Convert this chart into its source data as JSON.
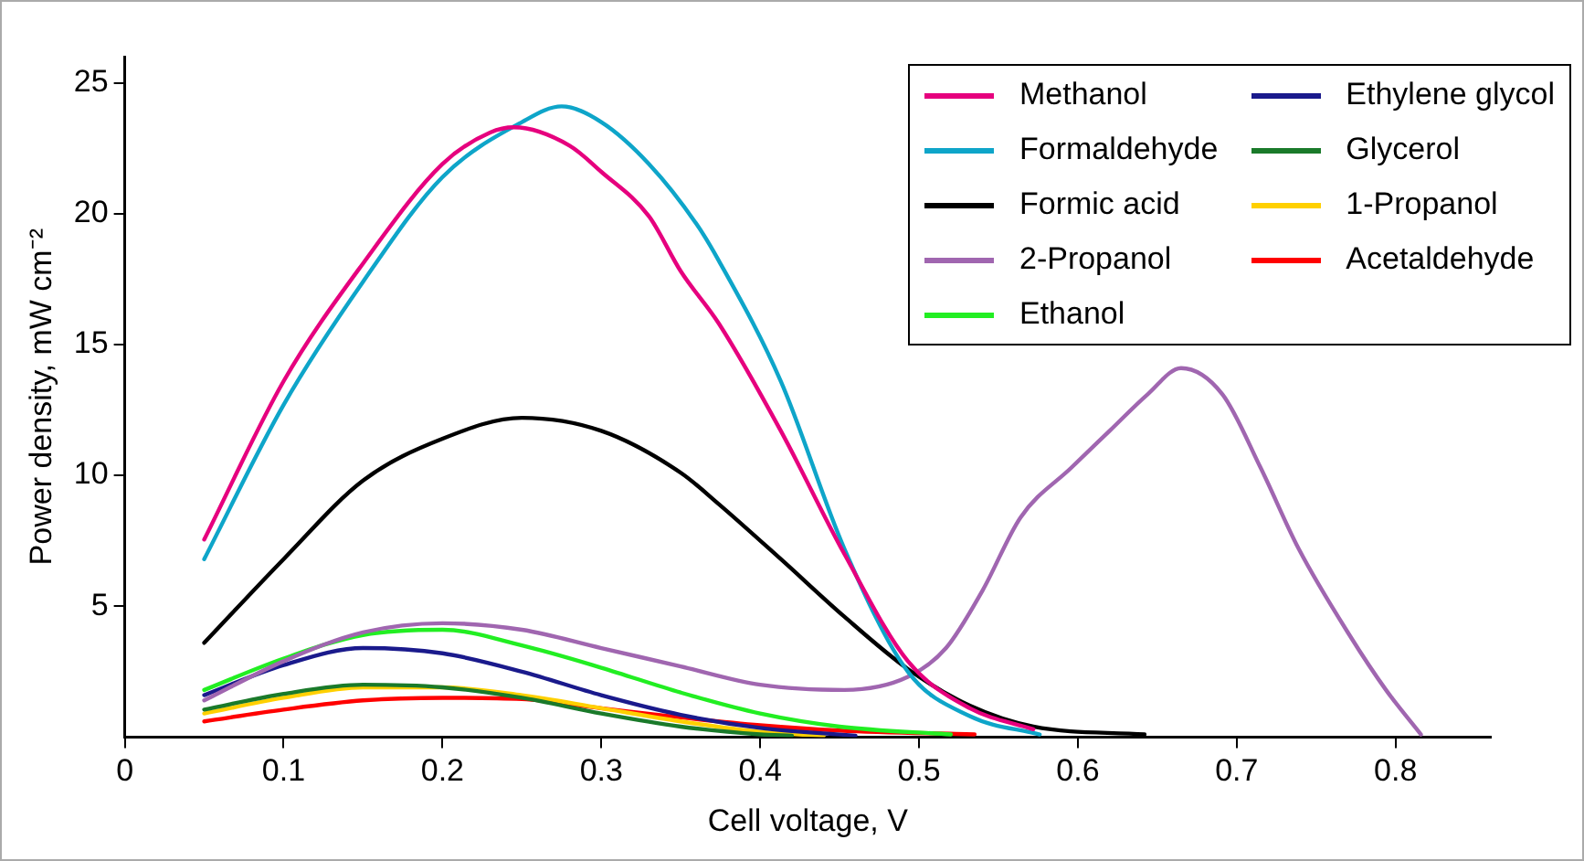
{
  "chart_data": {
    "type": "line",
    "xlabel": "Cell voltage, V",
    "ylabel": "Power density, mW cm⁻²",
    "xlim": [
      0,
      0.86
    ],
    "ylim": [
      0,
      26
    ],
    "xticks": [
      0,
      0.1,
      0.2,
      0.3,
      0.4,
      0.5,
      0.6,
      0.7,
      0.8
    ],
    "yticks": [
      5,
      10,
      15,
      20,
      25
    ],
    "grid": false,
    "legend": "top right",
    "marker": "none",
    "line_style": "solid",
    "series": [
      {
        "name": "Methanol",
        "color": "#e6007e",
        "x": [
          0.05,
          0.1,
          0.15,
          0.2,
          0.23,
          0.245,
          0.28,
          0.3,
          0.33,
          0.35,
          0.374,
          0.413,
          0.453,
          0.493,
          0.532,
          0.572
        ],
        "values": [
          7.55,
          13.6,
          18.1,
          21.9,
          23.1,
          23.3,
          22.6,
          21.6,
          19.9,
          17.8,
          15.8,
          11.7,
          7.0,
          2.9,
          1.1,
          0.3
        ]
      },
      {
        "name": "Formaldehyde",
        "color": "#0ea5c9",
        "x": [
          0.05,
          0.1,
          0.15,
          0.2,
          0.25,
          0.275,
          0.3,
          0.33,
          0.36,
          0.374,
          0.413,
          0.453,
          0.493,
          0.532,
          0.576
        ],
        "values": [
          6.8,
          12.7,
          17.4,
          21.4,
          23.5,
          24.1,
          23.5,
          21.9,
          19.6,
          18.2,
          13.6,
          7.2,
          2.5,
          0.8,
          0.1
        ]
      },
      {
        "name": "Formic acid",
        "color": "#000000",
        "x": [
          0.05,
          0.1,
          0.15,
          0.2,
          0.25,
          0.3,
          0.35,
          0.374,
          0.413,
          0.453,
          0.493,
          0.532,
          0.572,
          0.642
        ],
        "values": [
          3.6,
          6.8,
          9.8,
          11.4,
          12.2,
          11.7,
          10.1,
          8.9,
          6.8,
          4.6,
          2.6,
          1.2,
          0.4,
          0.1
        ]
      },
      {
        "name": "2-Propanol",
        "color": "#a066b0",
        "x": [
          0.05,
          0.1,
          0.15,
          0.2,
          0.25,
          0.3,
          0.35,
          0.4,
          0.453,
          0.493,
          0.517,
          0.54,
          0.564,
          0.596,
          0.62,
          0.644,
          0.665,
          0.691,
          0.715,
          0.739,
          0.771,
          0.794,
          0.816
        ],
        "values": [
          1.4,
          2.9,
          4.0,
          4.35,
          4.1,
          3.4,
          2.7,
          2.0,
          1.8,
          2.3,
          3.4,
          5.6,
          8.4,
          10.3,
          11.7,
          13.1,
          14.1,
          13.1,
          10.3,
          7.2,
          3.9,
          1.8,
          0.1
        ]
      },
      {
        "name": "Ethanol",
        "color": "#22ee22",
        "x": [
          0.05,
          0.1,
          0.15,
          0.2,
          0.25,
          0.3,
          0.35,
          0.4,
          0.45,
          0.52
        ],
        "values": [
          1.8,
          3.0,
          3.9,
          4.1,
          3.5,
          2.65,
          1.7,
          0.9,
          0.4,
          0.1
        ]
      },
      {
        "name": "Ethylene glycol",
        "color": "#1a1a8c",
        "x": [
          0.05,
          0.1,
          0.15,
          0.2,
          0.25,
          0.3,
          0.35,
          0.4,
          0.46
        ],
        "values": [
          1.6,
          2.75,
          3.4,
          3.2,
          2.5,
          1.6,
          0.85,
          0.35,
          0.05
        ]
      },
      {
        "name": "Glycerol",
        "color": "#1a7a2a",
        "x": [
          0.05,
          0.1,
          0.15,
          0.2,
          0.25,
          0.3,
          0.35,
          0.4,
          0.42
        ],
        "values": [
          1.05,
          1.65,
          2.0,
          1.9,
          1.5,
          0.9,
          0.4,
          0.1,
          0.05
        ]
      },
      {
        "name": "1-Propanol",
        "color": "#ffd000",
        "x": [
          0.05,
          0.1,
          0.15,
          0.2,
          0.25,
          0.3,
          0.35,
          0.4,
          0.44
        ],
        "values": [
          0.9,
          1.5,
          1.9,
          1.9,
          1.6,
          1.1,
          0.6,
          0.2,
          0.05
        ]
      },
      {
        "name": "Acetaldehyde",
        "color": "#ff0000",
        "x": [
          0.05,
          0.1,
          0.15,
          0.2,
          0.25,
          0.3,
          0.35,
          0.4,
          0.45,
          0.535
        ],
        "values": [
          0.6,
          1.05,
          1.4,
          1.5,
          1.45,
          1.1,
          0.75,
          0.45,
          0.25,
          0.1
        ]
      }
    ]
  }
}
